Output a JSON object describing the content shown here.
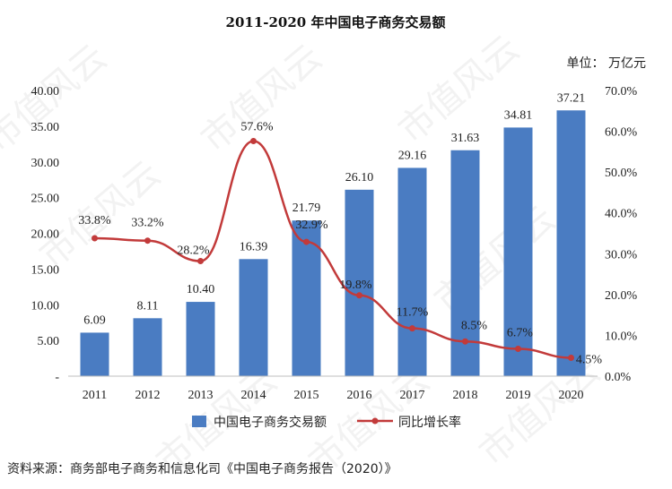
{
  "chart_data": {
    "type": "bar+line",
    "title": "2011-2020 年中国电子商务交易额",
    "unit_label": "单位：  万亿元",
    "categories": [
      "2011",
      "2012",
      "2013",
      "2014",
      "2015",
      "2016",
      "2017",
      "2018",
      "2019",
      "2020"
    ],
    "series": [
      {
        "name": "中国电子商务交易额",
        "type": "bar",
        "axis": "left",
        "values": [
          6.09,
          8.11,
          10.4,
          16.39,
          21.79,
          26.1,
          29.16,
          31.63,
          34.81,
          37.21
        ],
        "labels": [
          "6.09",
          "8.11",
          "10.40",
          "16.39",
          "21.79",
          "26.10",
          "29.16",
          "31.63",
          "34.81",
          "37.21"
        ]
      },
      {
        "name": "同比增长率",
        "type": "line",
        "axis": "right",
        "values": [
          33.8,
          33.2,
          28.2,
          57.6,
          32.9,
          19.8,
          11.7,
          8.5,
          6.7,
          4.5
        ],
        "labels": [
          "33.8%",
          "33.2%",
          "28.2%",
          "57.6%",
          "32.9%",
          "19.8%",
          "11.7%",
          "8.5%",
          "6.7%",
          "4.5%"
        ]
      }
    ],
    "y_left": {
      "ylim": [
        0,
        40
      ],
      "ticks": [
        0,
        5,
        10,
        15,
        20,
        25,
        30,
        35,
        40
      ],
      "tick_labels": [
        "-",
        "5.00",
        "10.00",
        "15.00",
        "20.00",
        "25.00",
        "30.00",
        "35.00",
        "40.00"
      ]
    },
    "y_right": {
      "ylim": [
        0,
        70
      ],
      "ticks": [
        0,
        10,
        20,
        30,
        40,
        50,
        60,
        70
      ],
      "tick_labels": [
        "0.0%",
        "10.0%",
        "20.0%",
        "30.0%",
        "40.0%",
        "50.0%",
        "60.0%",
        "70.0%"
      ]
    },
    "grid": false,
    "legend_position": "bottom",
    "colors": {
      "bar": "#4a7cc2",
      "line": "#c23a3a"
    }
  },
  "source": "资料来源：商务部电子商务和信息化司《中国电子商务报告（2020）》",
  "watermark": "市值风云"
}
